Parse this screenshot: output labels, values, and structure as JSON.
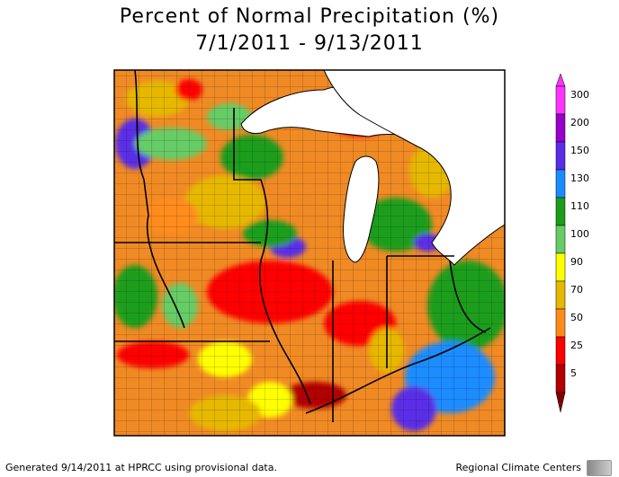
{
  "title_line1": "Percent of Normal Precipitation (%)",
  "title_line2": "7/1/2011 - 9/13/2011",
  "footer_left": "Generated 9/14/2011 at HPRCC using provisional data.",
  "footer_right": "Regional Climate Centers",
  "legend": {
    "levels": [
      {
        "label": "300",
        "color": "#ff33ff"
      },
      {
        "label": "200",
        "color": "#9900cc"
      },
      {
        "label": "150",
        "color": "#5a2ee6"
      },
      {
        "label": "130",
        "color": "#1a8cff"
      },
      {
        "label": "110",
        "color": "#1a9e1a"
      },
      {
        "label": "100",
        "color": "#66cc66"
      },
      {
        "label": "90",
        "color": "#ffff00"
      },
      {
        "label": "70",
        "color": "#e6b800"
      },
      {
        "label": "50",
        "color": "#ff8c1a"
      },
      {
        "label": "25",
        "color": "#ff0000"
      },
      {
        "label": "5",
        "color": "#b30000"
      }
    ],
    "bottom_color": "#800000"
  },
  "colors": {
    "water": "#ffffff",
    "border": "#000000",
    "base": "#f08a24"
  }
}
